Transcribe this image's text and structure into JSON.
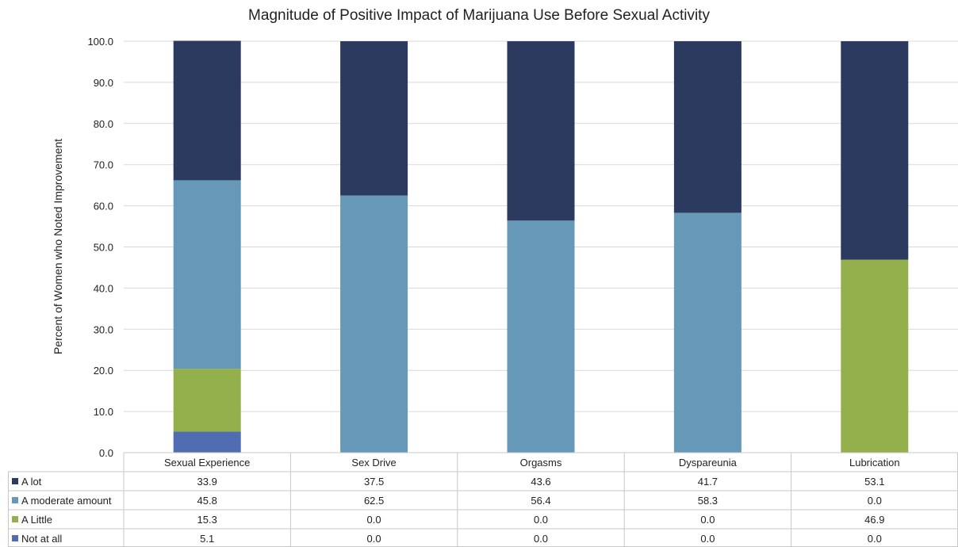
{
  "chart_data": {
    "type": "bar",
    "stacked": true,
    "title": "Magnitude of Positive Impact of Marijuana Use Before Sexual Activity",
    "ylabel": "Percent of Women who Noted Improvement",
    "xlabel": "",
    "ylim": [
      0,
      100
    ],
    "yticks": [
      "0.0",
      "10.0",
      "20.0",
      "30.0",
      "40.0",
      "50.0",
      "60.0",
      "70.0",
      "80.0",
      "90.0",
      "100.0"
    ],
    "grid": true,
    "legend": "data-table",
    "categories": [
      "Sexual Experience",
      "Sex Drive",
      "Orgasms",
      "Dyspareunia",
      "Lubrication"
    ],
    "series": [
      {
        "name": "A lot",
        "color": "#2d3a5f",
        "values": [
          33.9,
          37.5,
          43.6,
          41.7,
          53.1
        ],
        "labels": [
          "33.9",
          "37.5",
          "43.6",
          "41.7",
          "53.1"
        ]
      },
      {
        "name": "A moderate amount",
        "color": "#6699b8",
        "values": [
          45.8,
          62.5,
          56.4,
          58.3,
          0.0
        ],
        "labels": [
          "45.8",
          "62.5",
          "56.4",
          "58.3",
          "0.0"
        ]
      },
      {
        "name": "A Little",
        "color": "#93b04c",
        "values": [
          15.3,
          0.0,
          0.0,
          0.0,
          46.9
        ],
        "labels": [
          "15.3",
          "0.0",
          "0.0",
          "0.0",
          "46.9"
        ]
      },
      {
        "name": "Not at all",
        "color": "#4f6db0",
        "values": [
          5.1,
          0.0,
          0.0,
          0.0,
          0.0
        ],
        "labels": [
          "5.1",
          "0.0",
          "0.0",
          "0.0",
          "0.0"
        ]
      }
    ],
    "stack_order_bottom_to_top": [
      "Not at all",
      "A Little",
      "A moderate amount",
      "A lot"
    ],
    "colors": {
      "grid": "#d9d9d9",
      "table_border": "#c8c8c8"
    }
  }
}
